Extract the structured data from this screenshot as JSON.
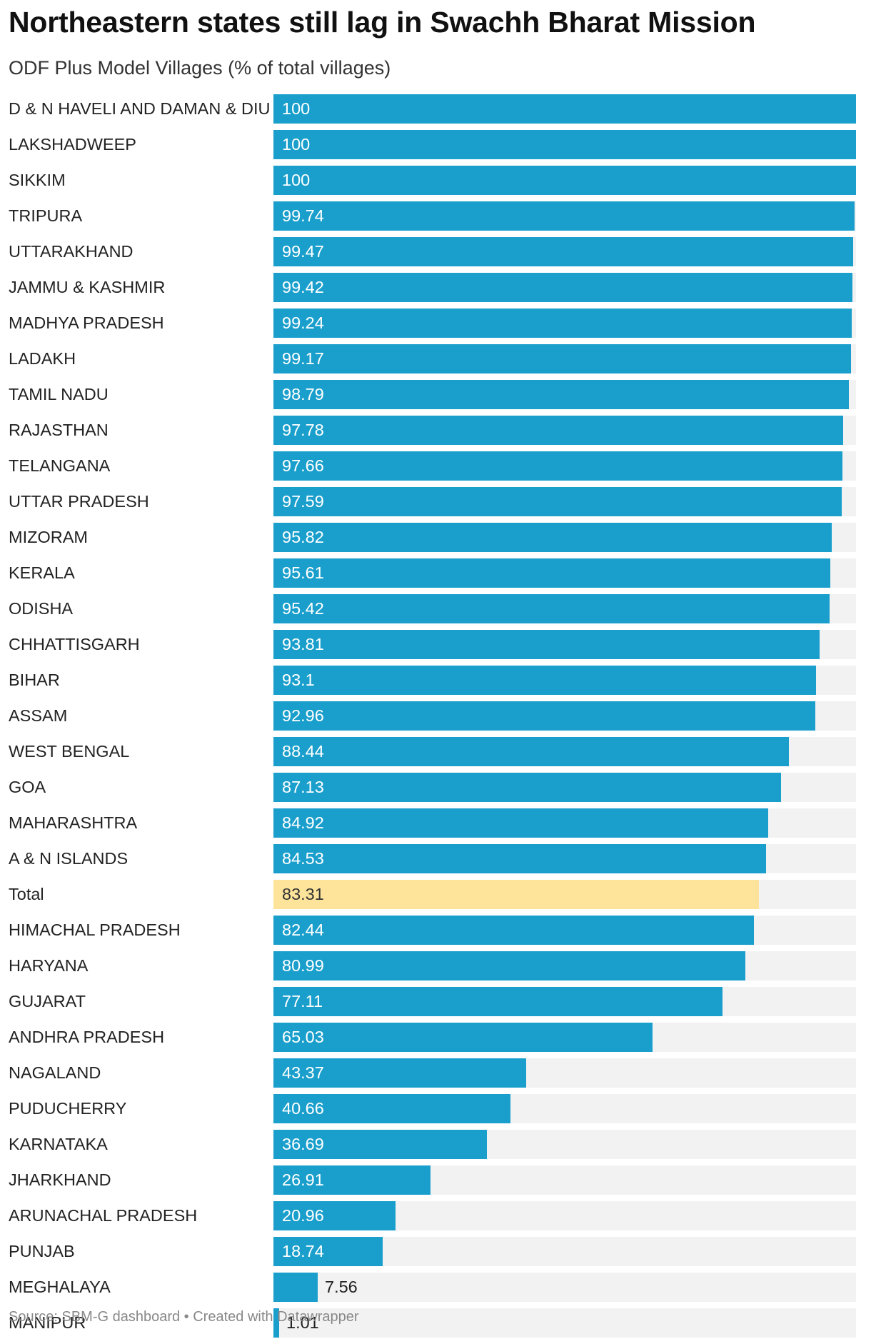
{
  "header": {
    "title": "Northeastern states still lag in Swachh Bharat Mission",
    "subtitle": "ODF Plus Model Villages (% of total villages)"
  },
  "footer": {
    "text": "Source: SBM-G dashboard • Created with Datawrapper"
  },
  "colors": {
    "bar": "#1a9fcc",
    "highlight": "#fde49a",
    "track": "#f2f2f2"
  },
  "chart_data": {
    "type": "bar",
    "orientation": "horizontal",
    "title": "Northeastern states still lag in Swachh Bharat Mission",
    "subtitle": "ODF Plus Model Villages (% of total villages)",
    "xlim": [
      0,
      100
    ],
    "grid": false,
    "highlight_category": "Total",
    "categories": [
      "D & N HAVELI AND DAMAN & DIU",
      "LAKSHADWEEP",
      "SIKKIM",
      "TRIPURA",
      "UTTARAKHAND",
      "JAMMU & KASHMIR",
      "MADHYA PRADESH",
      "LADAKH",
      "TAMIL NADU",
      "RAJASTHAN",
      "TELANGANA",
      "UTTAR PRADESH",
      "MIZORAM",
      "KERALA",
      "ODISHA",
      "CHHATTISGARH",
      "BIHAR",
      "ASSAM",
      "WEST BENGAL",
      "GOA",
      "MAHARASHTRA",
      "A & N ISLANDS",
      "Total",
      "HIMACHAL PRADESH",
      "HARYANA",
      "GUJARAT",
      "ANDHRA PRADESH",
      "NAGALAND",
      "PUDUCHERRY",
      "KARNATAKA",
      "JHARKHAND",
      "ARUNACHAL PRADESH",
      "PUNJAB",
      "MEGHALAYA",
      "MANIPUR"
    ],
    "values": [
      100,
      100,
      100,
      99.74,
      99.47,
      99.42,
      99.24,
      99.17,
      98.79,
      97.78,
      97.66,
      97.59,
      95.82,
      95.61,
      95.42,
      93.81,
      93.1,
      92.96,
      88.44,
      87.13,
      84.92,
      84.53,
      83.31,
      82.44,
      80.99,
      77.11,
      65.03,
      43.37,
      40.66,
      36.69,
      26.91,
      20.96,
      18.74,
      7.56,
      1.01
    ],
    "value_labels": [
      "100",
      "100",
      "100",
      "99.74",
      "99.47",
      "99.42",
      "99.24",
      "99.17",
      "98.79",
      "97.78",
      "97.66",
      "97.59",
      "95.82",
      "95.61",
      "95.42",
      "93.81",
      "93.1",
      "92.96",
      "88.44",
      "87.13",
      "84.92",
      "84.53",
      "83.31",
      "82.44",
      "80.99",
      "77.11",
      "65.03",
      "43.37",
      "40.66",
      "36.69",
      "26.91",
      "20.96",
      "18.74",
      "7.56",
      "1.01"
    ]
  }
}
